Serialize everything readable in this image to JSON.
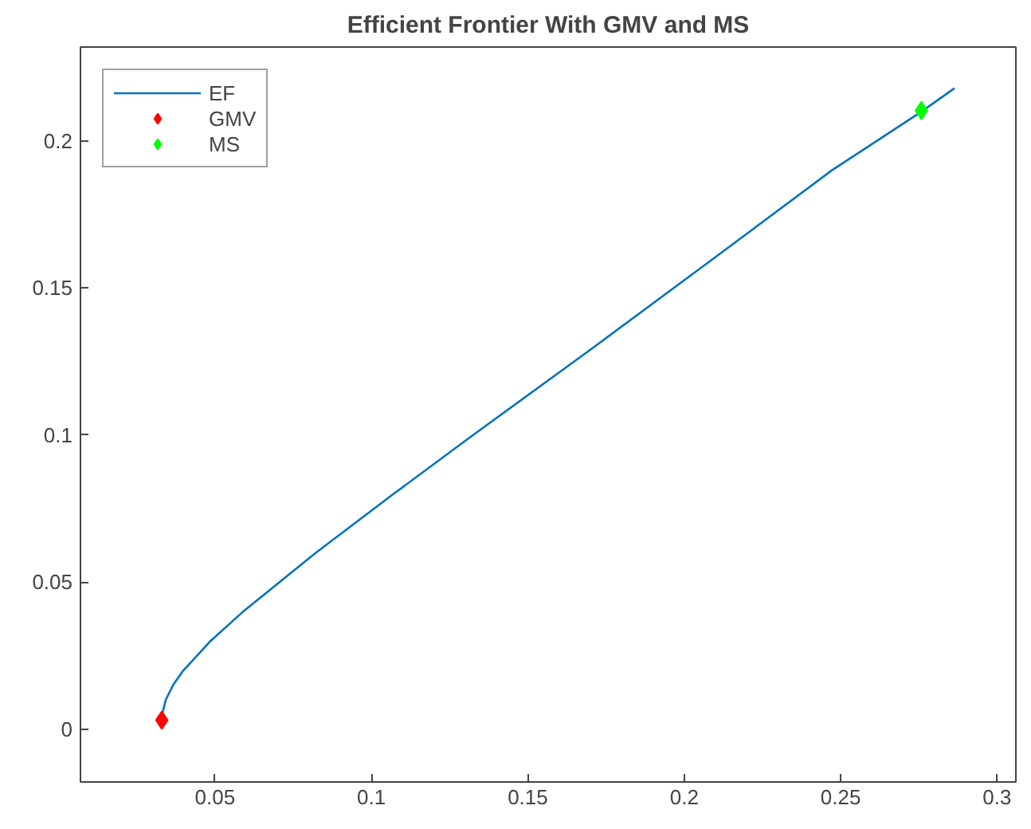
{
  "chart_data": {
    "type": "line",
    "title": "Efficient Frontier With GMV and MS",
    "series": [
      {
        "name": "EF",
        "color": "#0072bd",
        "marker": "none",
        "x": [
          0.033,
          0.03311,
          0.03428,
          0.03662,
          0.03994,
          0.04863,
          0.05903,
          0.08231,
          0.1071,
          0.1325,
          0.1712,
          0.2093,
          0.2471,
          0.2758,
          0.2864
        ],
        "values": [
          0.003,
          0.005,
          0.01,
          0.015,
          0.02,
          0.03,
          0.04,
          0.06,
          0.08,
          0.1,
          0.13,
          0.16,
          0.19,
          0.21,
          0.218
        ]
      },
      {
        "name": "GMV",
        "type": "scatter",
        "color": "#ff0000",
        "marker": "diamond",
        "x": [
          0.033
        ],
        "values": [
          0.003
        ]
      },
      {
        "name": "MS",
        "type": "scatter",
        "color": "#00ff00",
        "marker": "diamond",
        "x": [
          0.2758
        ],
        "values": [
          0.2104
        ]
      }
    ],
    "xlim": [
      0.007,
      0.306
    ],
    "ylim": [
      -0.018,
      0.232
    ],
    "xticks": [
      0.05,
      0.1,
      0.15,
      0.2,
      0.25,
      0.3
    ],
    "yticks": [
      0,
      0.05,
      0.1,
      0.15,
      0.2
    ],
    "grid": false,
    "legend": "top left"
  }
}
